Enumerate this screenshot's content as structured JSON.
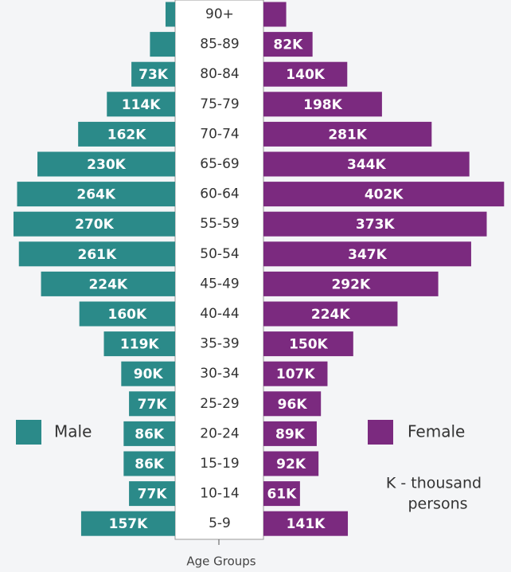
{
  "chart_data": {
    "type": "population-pyramid",
    "x_axis_label": "Age Groups",
    "categories": [
      "90+",
      "85-89",
      "80-84",
      "75-79",
      "70-74",
      "65-69",
      "60-64",
      "55-59",
      "50-54",
      "45-49",
      "40-44",
      "35-39",
      "30-34",
      "25-29",
      "20-24",
      "15-19",
      "10-14",
      "5-9"
    ],
    "series": [
      {
        "name": "Male",
        "color": "#2b8a89",
        "values": [
          16,
          42,
          73,
          114,
          162,
          230,
          264,
          270,
          261,
          224,
          160,
          119,
          90,
          77,
          86,
          86,
          77,
          157
        ],
        "value_labels": [
          null,
          null,
          "73K",
          "114K",
          "162K",
          "230K",
          "264K",
          "270K",
          "261K",
          "224K",
          "160K",
          "119K",
          "90K",
          "77K",
          "86K",
          "86K",
          "77K",
          "157K"
        ]
      },
      {
        "name": "Female",
        "color": "#7b2a7f",
        "values": [
          38,
          82,
          140,
          198,
          281,
          344,
          402,
          373,
          347,
          292,
          224,
          150,
          107,
          96,
          89,
          92,
          61,
          141
        ],
        "value_labels": [
          null,
          "82K",
          "140K",
          "198K",
          "281K",
          "344K",
          "402K",
          "373K",
          "347K",
          "292K",
          "224K",
          "150K",
          "107K",
          "96K",
          "89K",
          "92K",
          "61K",
          "141K"
        ]
      }
    ],
    "annotation": [
      "K - thousand",
      "persons"
    ]
  }
}
